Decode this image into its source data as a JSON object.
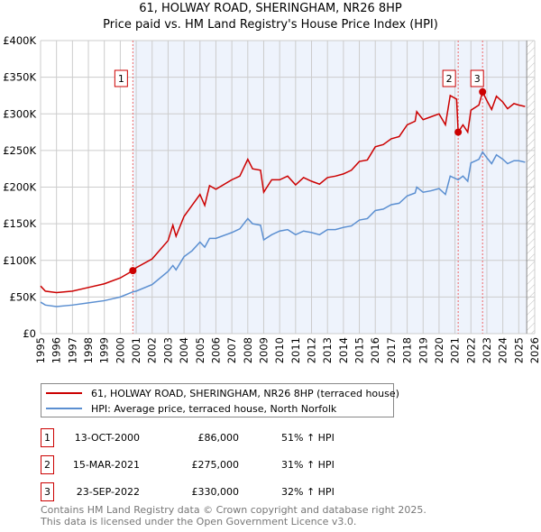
{
  "title": "61, HOLWAY ROAD, SHERINGHAM, NR26 8HP",
  "subtitle": "Price paid vs. HM Land Registry's House Price Index (HPI)",
  "colors": {
    "property": "#cc0000",
    "hpi": "#5b8fd1",
    "shade": "#eef3fc"
  },
  "chart_data": {
    "type": "line",
    "xlim": [
      1995,
      2026
    ],
    "ylim": [
      0,
      400000
    ],
    "yticks": [
      {
        "v": 0,
        "label": "£0"
      },
      {
        "v": 50000,
        "label": "£50K"
      },
      {
        "v": 100000,
        "label": "£100K"
      },
      {
        "v": 150000,
        "label": "£150K"
      },
      {
        "v": 200000,
        "label": "£200K"
      },
      {
        "v": 250000,
        "label": "£250K"
      },
      {
        "v": 300000,
        "label": "£300K"
      },
      {
        "v": 350000,
        "label": "£350K"
      },
      {
        "v": 400000,
        "label": "£400K"
      }
    ],
    "xticks": [
      "1995",
      "1996",
      "1997",
      "1998",
      "1999",
      "2000",
      "2001",
      "2002",
      "2003",
      "2004",
      "2005",
      "2006",
      "2007",
      "2008",
      "2009",
      "2010",
      "2011",
      "2012",
      "2013",
      "2014",
      "2015",
      "2016",
      "2017",
      "2018",
      "2019",
      "2020",
      "2021",
      "2022",
      "2023",
      "2024",
      "2025",
      "2026"
    ],
    "series": [
      {
        "name": "61, HOLWAY ROAD, SHERINGHAM, NR26 8HP (terraced house)",
        "color": "#cc0000",
        "x": [
          1995,
          1995.3,
          1996,
          1997,
          1998,
          1999,
          2000,
          2000.79,
          2001,
          2002,
          2003,
          2003.3,
          2003.5,
          2004,
          2004.5,
          2005,
          2005.3,
          2005.6,
          2006,
          2007,
          2007.5,
          2008,
          2008.3,
          2008.8,
          2009,
          2009.5,
          2010,
          2010.5,
          2011,
          2011.5,
          2012,
          2012.5,
          2013,
          2013.5,
          2014,
          2014.5,
          2015,
          2015.5,
          2016,
          2016.5,
          2017,
          2017.5,
          2018,
          2018.5,
          2018.6,
          2019,
          2019.5,
          2020,
          2020.4,
          2020.7,
          2021.1,
          2021.2,
          2021.5,
          2021.8,
          2022,
          2022.5,
          2022.73,
          2023,
          2023.3,
          2023.6,
          2024,
          2024.3,
          2024.7,
          2025,
          2025.4
        ],
        "y": [
          65000,
          58000,
          56000,
          58000,
          63000,
          68000,
          76000,
          86000,
          90000,
          102000,
          127000,
          148000,
          133000,
          160000,
          175000,
          190000,
          175000,
          202000,
          197000,
          210000,
          215000,
          238000,
          225000,
          223000,
          193000,
          210000,
          210000,
          215000,
          203000,
          213000,
          208000,
          204000,
          213000,
          215000,
          218000,
          223000,
          235000,
          237000,
          255000,
          258000,
          266000,
          269000,
          285000,
          290000,
          303000,
          292000,
          296000,
          300000,
          285000,
          325000,
          320000,
          275000,
          285000,
          275000,
          305000,
          312000,
          330000,
          318000,
          306000,
          324000,
          316000,
          307000,
          314000,
          312000,
          310000
        ]
      },
      {
        "name": "HPI: Average price, terraced house, North Norfolk",
        "color": "#5b8fd1",
        "x": [
          1995,
          1995.3,
          1996,
          1997,
          1998,
          1999,
          2000,
          2000.79,
          2001,
          2002,
          2003,
          2003.3,
          2003.5,
          2004,
          2004.5,
          2005,
          2005.3,
          2005.6,
          2006,
          2007,
          2007.5,
          2008,
          2008.3,
          2008.8,
          2009,
          2009.5,
          2010,
          2010.5,
          2011,
          2011.5,
          2012,
          2012.5,
          2013,
          2013.5,
          2014,
          2014.5,
          2015,
          2015.5,
          2016,
          2016.5,
          2017,
          2017.5,
          2018,
          2018.5,
          2018.6,
          2019,
          2019.5,
          2020,
          2020.4,
          2020.7,
          2021.1,
          2021.2,
          2021.5,
          2021.8,
          2022,
          2022.5,
          2022.73,
          2023,
          2023.3,
          2023.6,
          2024,
          2024.3,
          2024.7,
          2025,
          2025.4
        ],
        "y": [
          43000,
          39000,
          37000,
          39000,
          42000,
          45000,
          50000,
          57000,
          58000,
          67000,
          85000,
          93000,
          87000,
          105000,
          113000,
          125000,
          118000,
          130000,
          130000,
          138000,
          143000,
          157000,
          150000,
          148000,
          128000,
          135000,
          140000,
          142000,
          135000,
          140000,
          138000,
          135000,
          142000,
          142000,
          145000,
          147000,
          155000,
          157000,
          168000,
          170000,
          176000,
          178000,
          188000,
          192000,
          200000,
          193000,
          195000,
          198000,
          190000,
          215000,
          211000,
          210000,
          215000,
          208000,
          233000,
          238000,
          248000,
          240000,
          232000,
          244000,
          238000,
          232000,
          236000,
          236000,
          234000
        ]
      }
    ],
    "sales": [
      {
        "label": "1",
        "x": 2000.79,
        "y": 86000
      },
      {
        "label": "2",
        "x": 2021.2,
        "y": 275000
      },
      {
        "label": "3",
        "x": 2022.73,
        "y": 330000
      }
    ],
    "shaded_from": 2000.79,
    "forecast_hatch_from": 2025.5
  },
  "legend": [
    {
      "label": "61, HOLWAY ROAD, SHERINGHAM, NR26 8HP (terraced house)"
    },
    {
      "label": "HPI: Average price, terraced house, North Norfolk"
    }
  ],
  "transactions": [
    {
      "num": "1",
      "date": "13-OCT-2000",
      "price": "£86,000",
      "hpi": "51% ↑ HPI"
    },
    {
      "num": "2",
      "date": "15-MAR-2021",
      "price": "£275,000",
      "hpi": "31% ↑ HPI"
    },
    {
      "num": "3",
      "date": "23-SEP-2022",
      "price": "£330,000",
      "hpi": "32% ↑ HPI"
    }
  ],
  "footer": [
    "Contains HM Land Registry data © Crown copyright and database right 2025.",
    "This data is licensed under the Open Government Licence v3.0."
  ]
}
